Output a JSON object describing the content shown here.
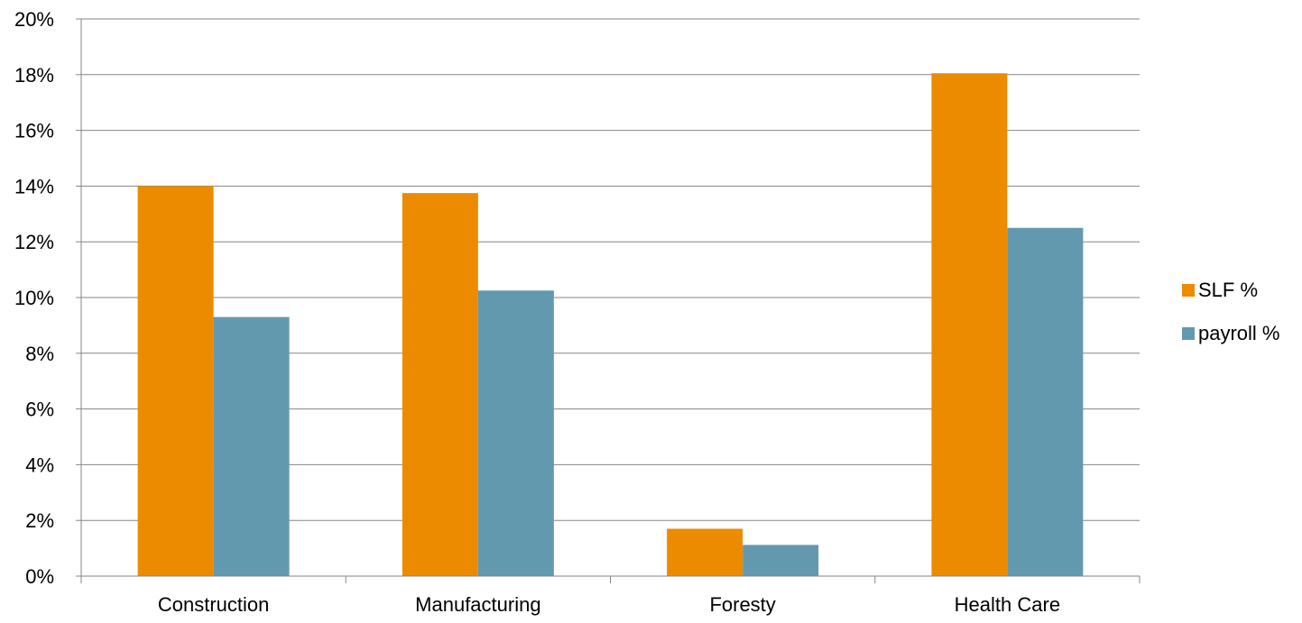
{
  "chart_data": {
    "type": "bar",
    "title": "",
    "xlabel": "",
    "ylabel": "",
    "categories": [
      "Construction",
      "Manufacturing",
      "Foresty",
      "Health Care"
    ],
    "series": [
      {
        "name": "SLF %",
        "values": [
          14.0,
          13.75,
          1.7,
          18.05
        ],
        "color": "#ED8B00"
      },
      {
        "name": "payroll %",
        "values": [
          9.3,
          10.25,
          1.12,
          12.5
        ],
        "color": "#6399AE"
      }
    ],
    "ylim": [
      0,
      20
    ],
    "yticks": [
      0,
      2,
      4,
      6,
      8,
      10,
      12,
      14,
      16,
      18,
      20
    ],
    "ytick_labels": [
      "0%",
      "2%",
      "4%",
      "6%",
      "8%",
      "10%",
      "12%",
      "14%",
      "16%",
      "18%",
      "20%"
    ],
    "grid": true,
    "legend_position": "right"
  }
}
